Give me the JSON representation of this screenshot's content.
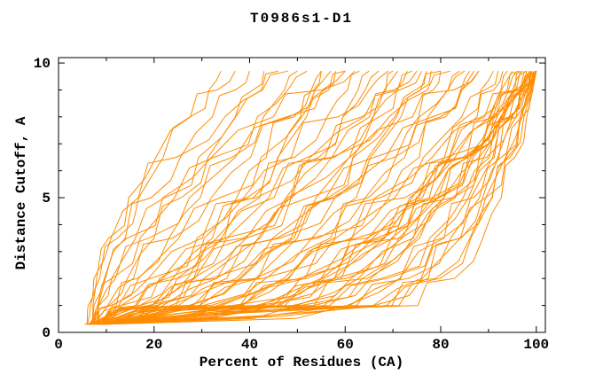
{
  "title": "T0986s1-D1",
  "chart_data": {
    "type": "line",
    "title": "T0986s1-D1",
    "xlabel": "Percent of Residues (CA)",
    "ylabel": "Distance Cutoff, A",
    "xlim": [
      0,
      101.9
    ],
    "ylim": [
      0,
      10.2
    ],
    "x_major_ticks": [
      0,
      20,
      40,
      60,
      80,
      100
    ],
    "x_minor_ticks": [
      10,
      30,
      50,
      70,
      90
    ],
    "y_major_ticks": [
      0,
      5,
      10
    ],
    "y_minor_ticks": [
      1,
      2,
      3,
      4,
      6,
      7,
      8,
      9
    ],
    "grid": false,
    "legend": "none",
    "line_color": "#ff8c00",
    "frame_color": "#000000",
    "y_anchors": [
      0.3,
      1,
      2,
      3.5,
      5,
      6.5,
      8,
      9,
      9.7
    ],
    "series_x": [
      [
        6,
        6.7,
        8.6,
        12.3,
        16.8,
        21.9,
        27.5,
        31.5,
        34
      ],
      [
        7,
        7.2,
        8,
        10.5,
        14.7,
        20.4,
        27.6,
        33.2,
        37
      ],
      [
        6.5,
        7.4,
        9.6,
        14,
        19.4,
        25.5,
        32.2,
        37,
        40
      ],
      [
        8,
        10.6,
        14.4,
        20,
        25.7,
        31.3,
        37,
        40.7,
        43
      ],
      [
        7.5,
        8.5,
        11.1,
        16.1,
        22.3,
        29.3,
        37.1,
        42.5,
        46
      ],
      [
        6,
        6.2,
        7.4,
        11,
        16.7,
        24.7,
        34.8,
        42.7,
        48
      ],
      [
        9,
        12.1,
        16.5,
        23.1,
        29.7,
        36.3,
        42.9,
        47.3,
        50
      ],
      [
        7,
        8.2,
        11.2,
        17.1,
        24.3,
        32.5,
        41.6,
        48,
        52
      ],
      [
        8.5,
        16.1,
        22.7,
        30.5,
        37.3,
        43.5,
        49.2,
        52.9,
        55
      ],
      [
        6.5,
        10.3,
        15.7,
        23.9,
        32,
        40.2,
        48.3,
        53.7,
        57
      ],
      [
        7,
        8.4,
        11.9,
        18.9,
        27.4,
        37,
        47.7,
        55.2,
        60
      ],
      [
        8,
        8.3,
        9.8,
        14.4,
        21.8,
        32,
        45,
        55.2,
        62
      ],
      [
        6,
        19.4,
        27,
        34.8,
        40.8,
        46,
        50.6,
        53.4,
        55
      ],
      [
        9,
        17,
        23.9,
        32.2,
        39.4,
        45.9,
        51.9,
        55.7,
        58
      ],
      [
        7,
        11,
        16.7,
        25.2,
        33.8,
        42.4,
        50.9,
        56.6,
        60
      ],
      [
        8,
        17,
        24.8,
        34.1,
        42.1,
        49.4,
        56.2,
        60.5,
        63
      ],
      [
        9.5,
        24.6,
        33,
        41.8,
        48.6,
        54.4,
        59.5,
        62.7,
        65
      ],
      [
        6.5,
        16.4,
        25,
        35.2,
        44,
        52.1,
        59.5,
        64.2,
        67
      ],
      [
        8,
        12.6,
        19.2,
        29,
        38.8,
        48.7,
        58.5,
        65,
        69
      ],
      [
        9.5,
        19.5,
        28.3,
        38.7,
        47.6,
        55.8,
        63.4,
        68.2,
        71
      ],
      [
        7,
        25.1,
        35.2,
        45.7,
        53.9,
        60.9,
        67.1,
        70.8,
        73
      ],
      [
        9,
        19.4,
        28.5,
        39.3,
        48.7,
        57.2,
        65.1,
        70.1,
        75
      ],
      [
        6,
        11.3,
        18.8,
        30.1,
        41.4,
        52.7,
        64,
        71.4,
        76
      ],
      [
        8.5,
        27.5,
        38.2,
        49.3,
        57.9,
        65.3,
        71.7,
        75.7,
        78
      ],
      [
        9,
        20.4,
        30.4,
        42.2,
        52.4,
        61.7,
        70.3,
        75.8,
        80
      ],
      [
        7.5,
        13.1,
        21.1,
        33.1,
        45.1,
        57.2,
        69.2,
        77.2,
        82
      ],
      [
        9,
        29.6,
        41.1,
        53,
        62.3,
        70.3,
        77.3,
        81.5,
        84
      ],
      [
        8.5,
        21,
        31.8,
        44.8,
        56,
        66.1,
        75.5,
        81.5,
        85
      ],
      [
        6.5,
        38.6,
        50.4,
        61.2,
        69.1,
        75.5,
        80.9,
        84.2,
        86
      ],
      [
        8,
        29.6,
        41.8,
        54.4,
        64.2,
        72.5,
        79.9,
        84.4,
        87
      ],
      [
        9,
        21.9,
        33.1,
        46.4,
        57.9,
        68.5,
        78.2,
        84.4,
        88
      ],
      [
        7,
        13.1,
        21.8,
        34.9,
        47.9,
        61,
        74.1,
        82.7,
        88
      ],
      [
        9,
        37.7,
        48.2,
        57.8,
        64.9,
        70.6,
        75.4,
        78.4,
        80
      ],
      [
        8.5,
        27.3,
        37.8,
        48.7,
        57.2,
        64.8,
        70.8,
        74.7,
        77
      ],
      [
        6,
        31.9,
        41.3,
        50,
        56.4,
        61.6,
        65.9,
        68.5,
        70
      ],
      [
        8,
        18.8,
        28.1,
        39.3,
        48.9,
        57.7,
        65.8,
        71,
        74
      ],
      [
        6,
        69.8,
        78.9,
        86.1,
        90.8,
        94.5,
        97.4,
        99.1,
        100
      ],
      [
        7,
        62.4,
        73.2,
        82.1,
        88.1,
        92.7,
        96.6,
        98.8,
        100
      ],
      [
        8,
        55.6,
        67.5,
        77.7,
        84.7,
        90.2,
        94.8,
        97.5,
        99
      ],
      [
        9,
        45.8,
        59.2,
        71.6,
        80.6,
        88,
        94.2,
        97.9,
        100
      ],
      [
        6.5,
        61,
        71.6,
        80.4,
        86.3,
        90.9,
        94.6,
        96.8,
        98
      ],
      [
        9.5,
        34.1,
        48,
        62.3,
        73.5,
        83,
        91.5,
        96.7,
        100
      ],
      [
        7.5,
        49.8,
        62.8,
        74.3,
        82.5,
        89,
        94.4,
        97.7,
        99.5
      ],
      [
        9,
        41.3,
        55.1,
        68.3,
        78.1,
        86.3,
        93.3,
        97.6,
        100
      ],
      [
        5.5,
        53.4,
        65.3,
        75.6,
        82.6,
        88.1,
        92.8,
        95.5,
        97
      ],
      [
        8.5,
        50.6,
        63.5,
        74.9,
        83.1,
        89.6,
        95,
        98.2,
        100
      ],
      [
        9,
        38,
        51.9,
        65.8,
        76.2,
        85,
        92.6,
        96.8,
        99
      ],
      [
        6,
        47.4,
        60.1,
        71.3,
        79.4,
        85.7,
        91.1,
        94.2,
        96
      ],
      [
        9.5,
        56.8,
        68.7,
        78.8,
        85.8,
        91.2,
        95.8,
        98.5,
        100
      ],
      [
        7,
        38.2,
        51.6,
        64.5,
        74,
        81.8,
        88.6,
        92.7,
        95
      ],
      [
        8.5,
        65.9,
        75.9,
        84,
        89.4,
        93.6,
        97,
        98.9,
        100
      ],
      [
        8,
        42.3,
        54.9,
        66.5,
        74.9,
        81.8,
        87.6,
        91.1,
        93
      ],
      [
        9,
        33.2,
        47.1,
        61.4,
        72.5,
        82,
        90.4,
        95.5,
        98.5
      ],
      [
        6.5,
        43.9,
        57.6,
        70.1,
        79.3,
        86.8,
        93.1,
        96.9,
        99
      ],
      [
        9,
        49,
        61.2,
        72,
        79.7,
        85.8,
        90.9,
        93.9,
        96.5
      ],
      [
        7.5,
        36.4,
        50.6,
        64.8,
        75.5,
        84.6,
        92.5,
        97.2,
        100
      ],
      [
        9,
        53.5,
        64.6,
        74.1,
        80.7,
        85.8,
        90.1,
        92.6,
        94
      ],
      [
        5.5,
        28.2,
        42.6,
        58,
        70.4,
        81.1,
        90.6,
        96.6,
        100
      ],
      [
        9.5,
        44.9,
        57.8,
        69.7,
        78.4,
        85.5,
        91.4,
        95,
        97
      ],
      [
        8,
        68.7,
        77.4,
        84.3,
        88.8,
        92.2,
        95,
        96.6,
        97.5
      ],
      [
        9,
        46.3,
        57.7,
        67.8,
        75,
        80.8,
        85.5,
        88.4,
        91
      ],
      [
        6,
        23.5,
        37.2,
        53,
        66.3,
        78.2,
        89.2,
        96,
        100
      ],
      [
        9.5,
        60.4,
        71.4,
        80.7,
        86.9,
        91.9,
        95.8,
        98.2,
        99.5
      ],
      [
        7,
        30.3,
        43.4,
        56.9,
        67.4,
        76.4,
        84.4,
        89.2,
        92
      ],
      [
        9,
        66.1,
        76.1,
        84.1,
        89.4,
        93.6,
        97,
        98.9,
        100
      ],
      [
        8.5,
        42,
        55.5,
        68.2,
        77.6,
        85.3,
        91.8,
        95.8,
        98
      ],
      [
        7,
        75.2,
        82.9,
        88.8,
        92.7,
        95.5,
        98,
        99.3,
        100
      ],
      [
        8,
        71.3,
        79.8,
        86.3,
        90.7,
        94,
        96.6,
        98.2,
        99
      ]
    ]
  }
}
